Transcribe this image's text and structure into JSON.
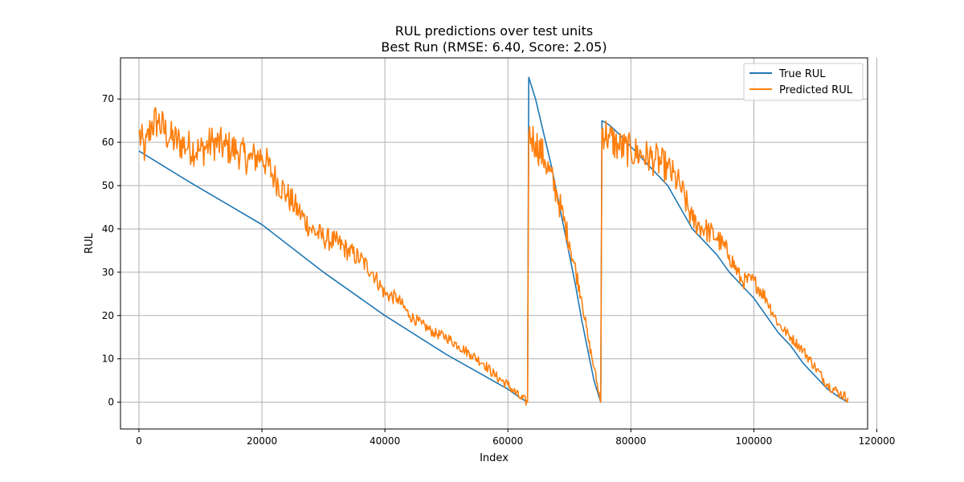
{
  "chart_data": {
    "type": "line",
    "title": "RUL predictions over test units",
    "subtitle": "Best Run (RMSE: 6.40, Score: 2.05)",
    "xlabel": "Index",
    "ylabel": "RUL",
    "xlim": [
      -3000,
      118500
    ],
    "ylim": [
      -6.2,
      79.5
    ],
    "xticks": [
      0,
      20000,
      40000,
      60000,
      80000,
      100000,
      120000
    ],
    "yticks": [
      0,
      10,
      20,
      30,
      40,
      50,
      60,
      70
    ],
    "grid": true,
    "legend_position": "top-right",
    "colors": {
      "true": "#1f77b4",
      "predicted": "#ff7f0e"
    },
    "series": [
      {
        "name": "True RUL",
        "key": "true",
        "x": [
          0,
          8000,
          20000,
          30000,
          40000,
          50000,
          55000,
          60000,
          62000,
          63200,
          63400,
          64500,
          65000,
          66000,
          67000,
          68000,
          69000,
          70000,
          71000,
          72000,
          73000,
          74000,
          75100,
          75300,
          76500,
          78000,
          80000,
          82000,
          84000,
          86000,
          88000,
          90000,
          92000,
          94000,
          96000,
          98000,
          100000,
          102000,
          104000,
          106000,
          108000,
          110000,
          112000,
          114000,
          115300
        ],
        "y": [
          58,
          51,
          41,
          30,
          20,
          11,
          7,
          3,
          1,
          0,
          75,
          70,
          67,
          61,
          55,
          48,
          41,
          34,
          27,
          19,
          12,
          5,
          0,
          65,
          64,
          62,
          59,
          56,
          53,
          50,
          45,
          40,
          37,
          34,
          30,
          27,
          24,
          20,
          16,
          13,
          9,
          6,
          3,
          1,
          0
        ]
      },
      {
        "name": "Predicted RUL",
        "key": "predicted",
        "x": [
          0,
          1000,
          2000,
          3000,
          5000,
          8000,
          10000,
          12000,
          14000,
          16000,
          18000,
          20000,
          22000,
          24000,
          26000,
          28000,
          30000,
          32000,
          34000,
          36000,
          38000,
          40000,
          42000,
          44000,
          46000,
          48000,
          50000,
          52000,
          54000,
          56000,
          58000,
          60000,
          62000,
          63200,
          63400,
          64500,
          66000,
          68000,
          70000,
          72000,
          73000,
          74000,
          75100,
          75300,
          76500,
          78000,
          80000,
          82000,
          84000,
          86000,
          88000,
          90000,
          92000,
          94000,
          96000,
          98000,
          100000,
          102000,
          104000,
          106000,
          108000,
          110000,
          112000,
          114000,
          115300
        ],
        "y": [
          62,
          58,
          64,
          65,
          61,
          59,
          58,
          60,
          59,
          58,
          56,
          57,
          52,
          48,
          44,
          40,
          38,
          37,
          35,
          33,
          30,
          25,
          24,
          20,
          18,
          16,
          15,
          13,
          11,
          9,
          6,
          4,
          1,
          0,
          62,
          60,
          56,
          48,
          37,
          24,
          15,
          8,
          0,
          63,
          61,
          59,
          58,
          57,
          56,
          54,
          50,
          42,
          40,
          38,
          34,
          28,
          28,
          24,
          18,
          15,
          12,
          8,
          4,
          2,
          1
        ]
      }
    ]
  }
}
